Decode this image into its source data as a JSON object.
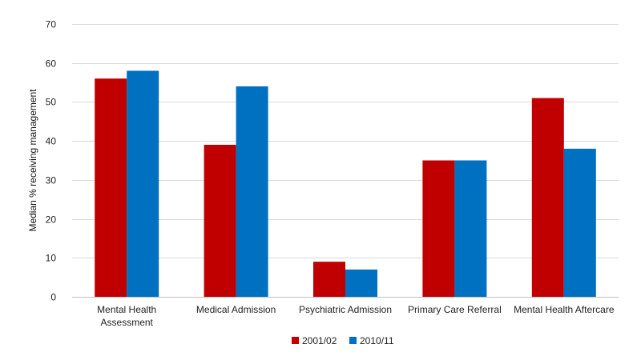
{
  "chart_data": {
    "type": "bar",
    "title": "",
    "xlabel": "",
    "ylabel": "Median % receiving management",
    "ylim": [
      0,
      70
    ],
    "yticks": [
      0,
      10,
      20,
      30,
      40,
      50,
      60,
      70
    ],
    "grid": true,
    "legend_position": "bottom",
    "categories": [
      [
        "Mental Health",
        "Assessment"
      ],
      [
        "Medical Admission"
      ],
      [
        "Psychiatric Admission"
      ],
      [
        "Primary Care Referral"
      ],
      [
        "Mental Health Aftercare"
      ]
    ],
    "series": [
      {
        "name": "2001/02",
        "color": "#C00000",
        "values": [
          56,
          39,
          9,
          35,
          51
        ]
      },
      {
        "name": "2010/11",
        "color": "#0070C0",
        "values": [
          58,
          54,
          7,
          35,
          38
        ]
      }
    ]
  }
}
